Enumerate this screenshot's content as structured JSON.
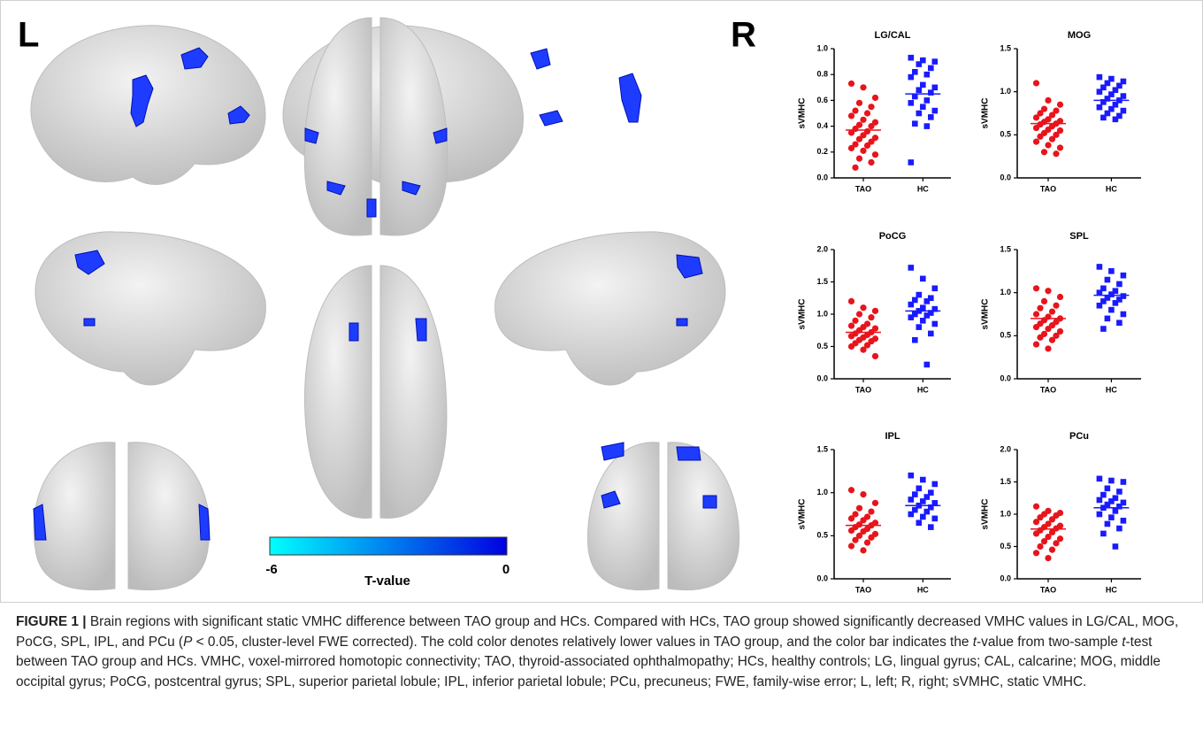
{
  "figure": {
    "left_label": "L",
    "right_label": "R",
    "colorbar": {
      "min_label": "-6",
      "max_label": "0",
      "label": "T-value"
    }
  },
  "chart_data": [
    {
      "type": "strip",
      "title": "LG/CAL",
      "y_label": "sVMHC",
      "categories": [
        "TAO",
        "HC"
      ],
      "ylim": [
        0,
        1
      ],
      "yticks": [
        {
          "value": 0,
          "label": "0.0"
        },
        0.2,
        0.4,
        0.6,
        0.8,
        {
          "value": 1,
          "label": "1.0"
        }
      ],
      "series": [
        {
          "color": "#e8141c",
          "marker": "circle",
          "mean": 0.37,
          "values": [
            0.73,
            0.7,
            0.62,
            0.58,
            0.55,
            0.52,
            0.5,
            0.48,
            0.45,
            0.43,
            0.41,
            0.4,
            0.38,
            0.36,
            0.35,
            0.33,
            0.31,
            0.3,
            0.28,
            0.26,
            0.25,
            0.23,
            0.21,
            0.18,
            0.15,
            0.12,
            0.08
          ]
        },
        {
          "color": "#1a1aff",
          "marker": "square",
          "mean": 0.65,
          "values": [
            0.93,
            0.91,
            0.9,
            0.88,
            0.85,
            0.82,
            0.8,
            0.78,
            0.72,
            0.7,
            0.68,
            0.66,
            0.63,
            0.6,
            0.58,
            0.55,
            0.52,
            0.5,
            0.47,
            0.42,
            0.4,
            0.12
          ]
        }
      ]
    },
    {
      "type": "strip",
      "title": "MOG",
      "y_label": "sVMHC",
      "categories": [
        "TAO",
        "HC"
      ],
      "ylim": [
        0,
        1.5
      ],
      "yticks": [
        {
          "value": 0,
          "label": "0.0"
        },
        0.5,
        {
          "value": 1,
          "label": "1.0"
        },
        1.5
      ],
      "series": [
        {
          "color": "#e8141c",
          "marker": "circle",
          "mean": 0.63,
          "values": [
            1.1,
            0.9,
            0.85,
            0.8,
            0.78,
            0.75,
            0.73,
            0.7,
            0.68,
            0.66,
            0.65,
            0.63,
            0.62,
            0.6,
            0.58,
            0.56,
            0.55,
            0.52,
            0.5,
            0.48,
            0.45,
            0.42,
            0.38,
            0.35,
            0.3,
            0.28
          ]
        },
        {
          "color": "#1a1aff",
          "marker": "square",
          "mean": 0.9,
          "values": [
            1.17,
            1.15,
            1.12,
            1.1,
            1.07,
            1.05,
            1.02,
            1.0,
            0.97,
            0.95,
            0.92,
            0.9,
            0.88,
            0.85,
            0.82,
            0.8,
            0.78,
            0.75,
            0.72,
            0.7,
            0.68
          ]
        }
      ]
    },
    {
      "type": "strip",
      "title": "PoCG",
      "y_label": "sVMHC",
      "categories": [
        "TAO",
        "HC"
      ],
      "ylim": [
        0,
        2
      ],
      "yticks": [
        {
          "value": 0,
          "label": "0.0"
        },
        0.5,
        {
          "value": 1,
          "label": "1.0"
        },
        1.5,
        {
          "value": 2,
          "label": "2.0"
        }
      ],
      "series": [
        {
          "color": "#e8141c",
          "marker": "circle",
          "mean": 0.72,
          "values": [
            1.2,
            1.1,
            1.05,
            1.0,
            0.95,
            0.9,
            0.85,
            0.82,
            0.8,
            0.78,
            0.75,
            0.72,
            0.7,
            0.68,
            0.66,
            0.64,
            0.62,
            0.6,
            0.58,
            0.55,
            0.52,
            0.5,
            0.45,
            0.35
          ]
        },
        {
          "color": "#1a1aff",
          "marker": "square",
          "mean": 1.05,
          "values": [
            1.72,
            1.55,
            1.4,
            1.3,
            1.25,
            1.22,
            1.2,
            1.15,
            1.1,
            1.08,
            1.05,
            1.02,
            1.0,
            0.98,
            0.95,
            0.9,
            0.85,
            0.8,
            0.7,
            0.6,
            0.22
          ]
        }
      ]
    },
    {
      "type": "strip",
      "title": "SPL",
      "y_label": "sVMHC",
      "categories": [
        "TAO",
        "HC"
      ],
      "ylim": [
        0,
        1.5
      ],
      "yticks": [
        {
          "value": 0,
          "label": "0.0"
        },
        0.5,
        {
          "value": 1,
          "label": "1.0"
        },
        1.5
      ],
      "series": [
        {
          "color": "#e8141c",
          "marker": "circle",
          "mean": 0.7,
          "values": [
            1.05,
            1.02,
            0.95,
            0.9,
            0.85,
            0.82,
            0.78,
            0.75,
            0.72,
            0.7,
            0.68,
            0.66,
            0.64,
            0.62,
            0.6,
            0.58,
            0.55,
            0.52,
            0.5,
            0.48,
            0.45,
            0.4,
            0.35
          ]
        },
        {
          "color": "#1a1aff",
          "marker": "square",
          "mean": 0.97,
          "values": [
            1.3,
            1.25,
            1.2,
            1.15,
            1.1,
            1.05,
            1.02,
            1.0,
            0.98,
            0.96,
            0.94,
            0.92,
            0.9,
            0.88,
            0.85,
            0.8,
            0.75,
            0.7,
            0.65,
            0.58
          ]
        }
      ]
    },
    {
      "type": "strip",
      "title": "IPL",
      "y_label": "sVMHC",
      "categories": [
        "TAO",
        "HC"
      ],
      "ylim": [
        0,
        1.5
      ],
      "yticks": [
        {
          "value": 0,
          "label": "0.0"
        },
        0.5,
        {
          "value": 1,
          "label": "1.0"
        },
        1.5
      ],
      "series": [
        {
          "color": "#e8141c",
          "marker": "circle",
          "mean": 0.62,
          "values": [
            1.03,
            0.98,
            0.88,
            0.82,
            0.78,
            0.75,
            0.72,
            0.7,
            0.68,
            0.65,
            0.63,
            0.62,
            0.6,
            0.58,
            0.56,
            0.55,
            0.52,
            0.5,
            0.48,
            0.45,
            0.42,
            0.38,
            0.33
          ]
        },
        {
          "color": "#1a1aff",
          "marker": "square",
          "mean": 0.85,
          "values": [
            1.2,
            1.15,
            1.1,
            1.05,
            1.0,
            0.98,
            0.95,
            0.92,
            0.9,
            0.88,
            0.85,
            0.83,
            0.8,
            0.78,
            0.75,
            0.72,
            0.7,
            0.65,
            0.6
          ]
        }
      ]
    },
    {
      "type": "strip",
      "title": "PCu",
      "y_label": "sVMHC",
      "categories": [
        "TAO",
        "HC"
      ],
      "ylim": [
        0,
        2
      ],
      "yticks": [
        {
          "value": 0,
          "label": "0.0"
        },
        0.5,
        {
          "value": 1,
          "label": "1.0"
        },
        1.5,
        {
          "value": 2,
          "label": "2.0"
        }
      ],
      "series": [
        {
          "color": "#e8141c",
          "marker": "circle",
          "mean": 0.77,
          "values": [
            1.12,
            1.05,
            1.02,
            1.0,
            0.98,
            0.95,
            0.92,
            0.88,
            0.85,
            0.82,
            0.8,
            0.78,
            0.75,
            0.72,
            0.7,
            0.65,
            0.62,
            0.58,
            0.55,
            0.5,
            0.45,
            0.4,
            0.32
          ]
        },
        {
          "color": "#1a1aff",
          "marker": "square",
          "mean": 1.1,
          "values": [
            1.55,
            1.52,
            1.5,
            1.4,
            1.35,
            1.3,
            1.25,
            1.22,
            1.2,
            1.18,
            1.15,
            1.12,
            1.1,
            1.05,
            1.0,
            0.95,
            0.9,
            0.85,
            0.78,
            0.7,
            0.5
          ]
        }
      ]
    }
  ],
  "caption": {
    "label": "FIGURE 1 |",
    "segments": [
      {
        "text": " Brain regions with significant static VMHC difference between TAO group and HCs. Compared with HCs, TAO group showed significantly decreased VMHC values in LG/CAL, MOG, PoCG, SPL, IPL, and PCu (",
        "italic": false
      },
      {
        "text": "P",
        "italic": true
      },
      {
        "text": " < 0.05, cluster-level FWE corrected). The cold color denotes relatively lower values in TAO group, and the color bar indicates the ",
        "italic": false
      },
      {
        "text": "t",
        "italic": true
      },
      {
        "text": "-value from two-sample ",
        "italic": false
      },
      {
        "text": "t",
        "italic": true
      },
      {
        "text": "-test between TAO group and HCs. VMHC, voxel-mirrored homotopic connectivity; TAO, thyroid-associated ophthalmopathy; HCs, healthy controls; LG, lingual gyrus; CAL, calcarine; MOG, middle occipital gyrus; PoCG, postcentral gyrus; SPL, superior parietal lobule; IPL, inferior parietal lobule; PCu, precuneus; FWE, family-wise error; L, left; R, right; sVMHC, static VMHC.",
        "italic": false
      }
    ]
  }
}
